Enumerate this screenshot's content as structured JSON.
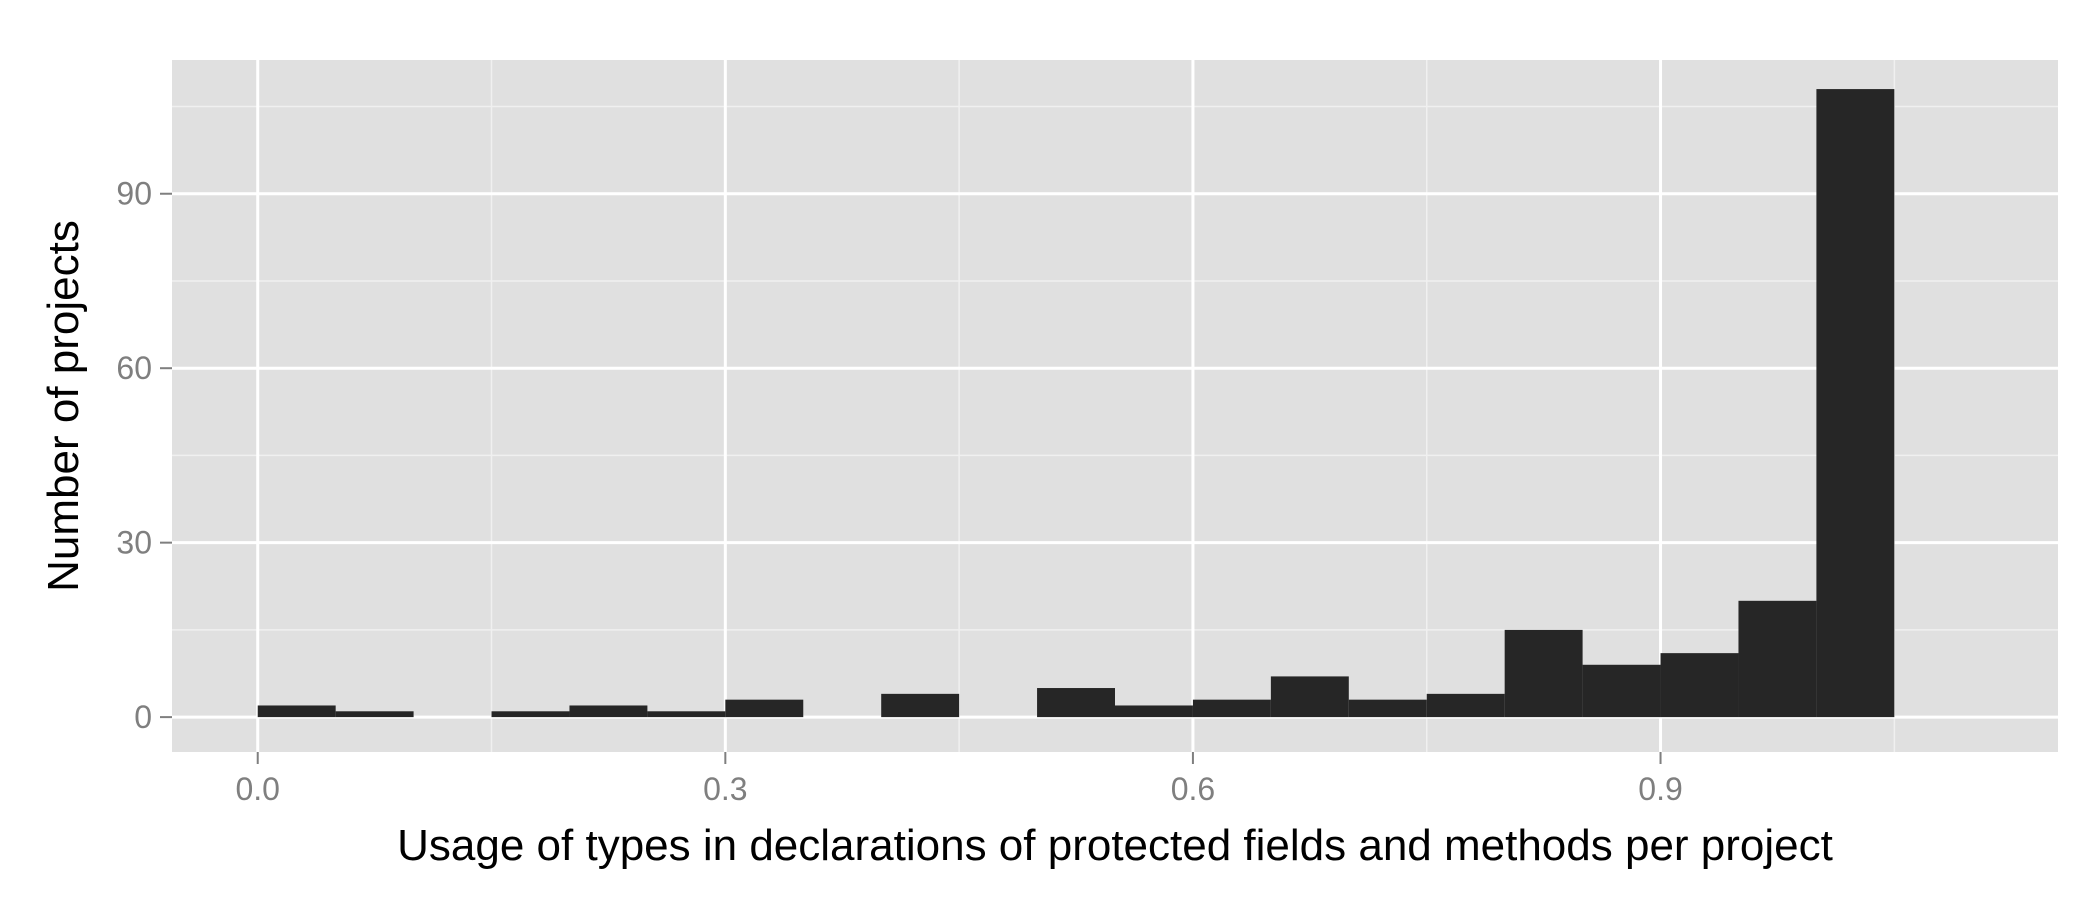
{
  "chart_data": {
    "type": "bar",
    "histogram": true,
    "xlabel": "Usage of types in declarations of protected fields and methods per project",
    "ylabel": "Number of projects",
    "xlim": [
      -0.055,
      1.155
    ],
    "ylim": [
      -6,
      113
    ],
    "x_ticks": [
      0.0,
      0.3,
      0.6,
      0.9
    ],
    "x_tick_labels": [
      "0.0",
      "0.3",
      "0.6",
      "0.9"
    ],
    "y_ticks": [
      0,
      30,
      60,
      90
    ],
    "y_tick_labels": [
      "0",
      "30",
      "60",
      "90"
    ],
    "bin_width": 0.05,
    "bins": [
      {
        "start": 0.0,
        "end": 0.05,
        "value": 2
      },
      {
        "start": 0.05,
        "end": 0.1,
        "value": 1
      },
      {
        "start": 0.1,
        "end": 0.15,
        "value": 0
      },
      {
        "start": 0.15,
        "end": 0.2,
        "value": 1
      },
      {
        "start": 0.2,
        "end": 0.25,
        "value": 2
      },
      {
        "start": 0.25,
        "end": 0.3,
        "value": 1
      },
      {
        "start": 0.3,
        "end": 0.35,
        "value": 3
      },
      {
        "start": 0.35,
        "end": 0.4,
        "value": 0
      },
      {
        "start": 0.4,
        "end": 0.45,
        "value": 4
      },
      {
        "start": 0.45,
        "end": 0.5,
        "value": 0
      },
      {
        "start": 0.5,
        "end": 0.55,
        "value": 5
      },
      {
        "start": 0.55,
        "end": 0.6,
        "value": 2
      },
      {
        "start": 0.6,
        "end": 0.65,
        "value": 3
      },
      {
        "start": 0.65,
        "end": 0.7,
        "value": 7
      },
      {
        "start": 0.7,
        "end": 0.75,
        "value": 3
      },
      {
        "start": 0.75,
        "end": 0.8,
        "value": 4
      },
      {
        "start": 0.8,
        "end": 0.85,
        "value": 15
      },
      {
        "start": 0.85,
        "end": 0.9,
        "value": 9
      },
      {
        "start": 0.9,
        "end": 0.95,
        "value": 11
      },
      {
        "start": 0.95,
        "end": 1.0,
        "value": 20
      },
      {
        "start": 1.0,
        "end": 1.05,
        "value": 108
      }
    ],
    "grid": true,
    "colors": {
      "panel": "#e0e0e0",
      "grid_major": "#ffffff",
      "grid_minor": "#f0f0f0",
      "bar": "#262626"
    }
  }
}
